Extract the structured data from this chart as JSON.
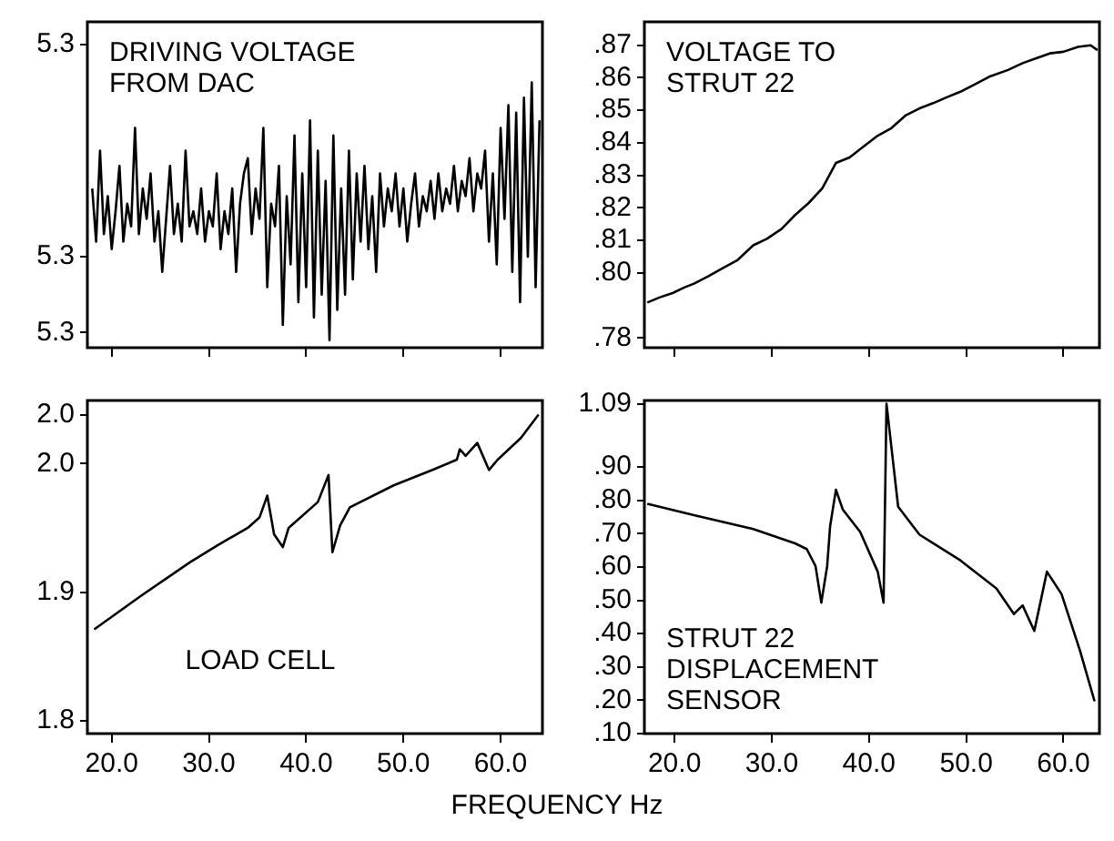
{
  "chart_data": [
    {
      "type": "line",
      "title": "DRIVING VOLTAGE FROM DAC",
      "xlim": [
        17.5,
        64.3
      ],
      "xticks": [
        20,
        30,
        40,
        50,
        60
      ],
      "ylim": [
        5.2998,
        5.3041
      ],
      "yticks": [
        {
          "value": 5.3038,
          "label": "5.3"
        },
        {
          "value": 5.301,
          "label": "5.3"
        },
        {
          "value": 5.3,
          "label": "5.3"
        }
      ],
      "tick_labels": "y",
      "grid": false,
      "series": [
        {
          "color": "#000000",
          "x": [
            18.0,
            18.4,
            18.8,
            19.2,
            19.6,
            20.0,
            20.4,
            20.8,
            21.2,
            21.6,
            22.0,
            22.4,
            22.8,
            23.2,
            23.6,
            24.0,
            24.4,
            24.8,
            25.2,
            25.6,
            26.0,
            26.4,
            26.8,
            27.2,
            27.6,
            28.0,
            28.4,
            28.8,
            29.2,
            29.6,
            30.0,
            30.4,
            30.8,
            31.2,
            31.6,
            32.0,
            32.4,
            32.8,
            33.2,
            33.6,
            34.0,
            34.4,
            34.8,
            35.2,
            35.6,
            36.0,
            36.4,
            36.8,
            37.2,
            37.6,
            38.0,
            38.4,
            38.8,
            39.2,
            39.6,
            40.0,
            40.4,
            40.8,
            41.2,
            41.6,
            42.0,
            42.4,
            42.8,
            43.2,
            43.6,
            44.0,
            44.4,
            44.8,
            45.2,
            45.6,
            46.0,
            46.4,
            46.8,
            47.2,
            47.6,
            48.0,
            48.4,
            48.8,
            49.2,
            49.6,
            50.0,
            50.4,
            50.8,
            51.2,
            51.6,
            52.0,
            52.4,
            52.8,
            53.2,
            53.6,
            54.0,
            54.4,
            54.8,
            55.2,
            55.6,
            56.0,
            56.4,
            56.8,
            57.2,
            57.6,
            58.0,
            58.4,
            58.8,
            59.2,
            59.6,
            60.0,
            60.4,
            60.8,
            61.2,
            61.6,
            62.0,
            62.4,
            62.8,
            63.2,
            63.6,
            64.0
          ],
          "values": [
            5.3019,
            5.3012,
            5.3024,
            5.3013,
            5.3018,
            5.3011,
            5.3016,
            5.3022,
            5.3012,
            5.3017,
            5.3014,
            5.3027,
            5.3013,
            5.3019,
            5.3015,
            5.3021,
            5.3012,
            5.3016,
            5.3008,
            5.3015,
            5.3022,
            5.3013,
            5.3017,
            5.3012,
            5.3024,
            5.3014,
            5.3016,
            5.3013,
            5.3019,
            5.3012,
            5.3016,
            5.3014,
            5.3021,
            5.3011,
            5.3016,
            5.3013,
            5.3019,
            5.3008,
            5.3017,
            5.3021,
            5.3023,
            5.3013,
            5.3019,
            5.3015,
            5.3027,
            5.3006,
            5.3017,
            5.3014,
            5.3022,
            5.3001,
            5.3018,
            5.3009,
            5.3026,
            5.3004,
            5.3021,
            5.3006,
            5.3028,
            5.3002,
            5.3024,
            5.3005,
            5.302,
            5.2999,
            5.3026,
            5.3003,
            5.3019,
            5.3005,
            5.3024,
            5.3007,
            5.3021,
            5.3012,
            5.3022,
            5.3011,
            5.3018,
            5.3008,
            5.3021,
            5.3014,
            5.3019,
            5.3016,
            5.3021,
            5.3014,
            5.3019,
            5.3012,
            5.3017,
            5.3021,
            5.3014,
            5.3018,
            5.3016,
            5.302,
            5.3015,
            5.3021,
            5.3016,
            5.3019,
            5.3017,
            5.3022,
            5.3016,
            5.302,
            5.3018,
            5.3023,
            5.3016,
            5.3021,
            5.3019,
            5.3024,
            5.3012,
            5.3021,
            5.3009,
            5.3027,
            5.3015,
            5.303,
            5.3008,
            5.3029,
            5.3004,
            5.3031,
            5.301,
            5.3033,
            5.3006,
            5.3028
          ]
        }
      ]
    },
    {
      "type": "line",
      "title": "VOLTAGE TO STRUT 22",
      "xlim": [
        16.9,
        63.7
      ],
      "xticks": [
        20,
        30,
        40,
        50,
        60
      ],
      "ylim": [
        0.777,
        0.8772
      ],
      "yticks": [
        {
          "value": 0.87,
          "label": ".87"
        },
        {
          "value": 0.86,
          "label": ".86"
        },
        {
          "value": 0.85,
          "label": ".85"
        },
        {
          "value": 0.84,
          "label": ".84"
        },
        {
          "value": 0.83,
          "label": ".83"
        },
        {
          "value": 0.82,
          "label": ".82"
        },
        {
          "value": 0.81,
          "label": ".81"
        },
        {
          "value": 0.8,
          "label": ".80"
        },
        {
          "value": 0.78,
          "label": ".78"
        }
      ],
      "tick_labels": "y",
      "grid": false,
      "series": [
        {
          "color": "#000000",
          "x": [
            17.2,
            18.5,
            19.8,
            21.0,
            22.0,
            23.5,
            25.0,
            26.5,
            28.1,
            29.5,
            31.0,
            32.4,
            33.8,
            35.2,
            36.6,
            38.0,
            39.5,
            40.9,
            42.3,
            43.8,
            45.2,
            46.6,
            48.0,
            49.4,
            50.9,
            52.5,
            54.3,
            55.8,
            57.2,
            58.6,
            60.0,
            61.5,
            62.8,
            63.5
          ],
          "values": [
            0.7909,
            0.7925,
            0.7938,
            0.7955,
            0.7967,
            0.799,
            0.8015,
            0.804,
            0.8085,
            0.8105,
            0.8135,
            0.8178,
            0.8215,
            0.826,
            0.8338,
            0.8355,
            0.839,
            0.8422,
            0.8445,
            0.8485,
            0.8506,
            0.8522,
            0.854,
            0.8557,
            0.858,
            0.8605,
            0.8624,
            0.8645,
            0.866,
            0.8675,
            0.868,
            0.8695,
            0.87,
            0.8685
          ]
        }
      ]
    },
    {
      "type": "line",
      "title": "LOAD CELL",
      "xlabel": "FREQUENCY Hz",
      "xlim": [
        17.5,
        64.3
      ],
      "xticks": [
        {
          "value": 20,
          "label": "20.0"
        },
        {
          "value": 30,
          "label": "30.0"
        },
        {
          "value": 40,
          "label": "40.0"
        },
        {
          "value": 50,
          "label": "50.0"
        },
        {
          "value": 60,
          "label": "60.0"
        }
      ],
      "ylim": [
        1.79,
        2.049
      ],
      "yticks": [
        {
          "value": 2.038,
          "label": "2.0"
        },
        {
          "value": 2.0,
          "label": "2.0"
        },
        {
          "value": 1.9,
          "label": "1.9"
        },
        {
          "value": 1.8,
          "label": "1.8"
        }
      ],
      "grid": false,
      "series": [
        {
          "color": "#000000",
          "x": [
            18.2,
            23.0,
            28.0,
            31.0,
            34.0,
            35.2,
            36.0,
            36.7,
            37.6,
            38.2,
            41.2,
            42.3,
            42.7,
            43.5,
            44.5,
            49.0,
            53.0,
            55.5,
            55.8,
            56.4,
            57.6,
            58.8,
            59.7,
            62.1,
            63.9
          ],
          "values": [
            1.871,
            1.897,
            1.923,
            1.937,
            1.95,
            1.958,
            1.975,
            1.945,
            1.935,
            1.95,
            1.97,
            1.991,
            1.931,
            1.952,
            1.966,
            1.983,
            1.995,
            2.003,
            2.011,
            2.006,
            2.016,
            1.995,
            2.003,
            2.02,
            2.038
          ]
        }
      ]
    },
    {
      "type": "line",
      "title": "STRUT 22 DISPLACEMENT SENSOR",
      "xlim": [
        16.9,
        63.7
      ],
      "xticks": [
        {
          "value": 20,
          "label": "20.0"
        },
        {
          "value": 30,
          "label": "30.0"
        },
        {
          "value": 40,
          "label": "40.0"
        },
        {
          "value": 50,
          "label": "50.0"
        },
        {
          "value": 60,
          "label": "60.0"
        }
      ],
      "ylim": [
        0.1,
        1.1
      ],
      "yticks": [
        {
          "value": 1.09,
          "label": "1.09"
        },
        {
          "value": 0.9,
          "label": ".90"
        },
        {
          "value": 0.8,
          "label": ".80"
        },
        {
          "value": 0.7,
          "label": ".70"
        },
        {
          "value": 0.6,
          "label": ".60"
        },
        {
          "value": 0.5,
          "label": ".50"
        },
        {
          "value": 0.4,
          "label": ".40"
        },
        {
          "value": 0.3,
          "label": ".30"
        },
        {
          "value": 0.2,
          "label": ".20"
        },
        {
          "value": 0.1,
          "label": ".10"
        }
      ],
      "grid": false,
      "series": [
        {
          "color": "#000000",
          "x": [
            17.2,
            22.0,
            28.1,
            32.4,
            33.6,
            34.5,
            35.1,
            35.7,
            36.0,
            36.6,
            37.3,
            39.1,
            40.9,
            41.5,
            41.8,
            43.0,
            45.2,
            49.4,
            53.1,
            54.9,
            55.8,
            57.0,
            58.3,
            59.8,
            61.7,
            63.2
          ],
          "values": [
            0.79,
            0.756,
            0.714,
            0.671,
            0.654,
            0.603,
            0.493,
            0.603,
            0.722,
            0.832,
            0.773,
            0.705,
            0.586,
            0.493,
            1.09,
            0.781,
            0.697,
            0.62,
            0.536,
            0.459,
            0.485,
            0.408,
            0.586,
            0.519,
            0.349,
            0.197
          ]
        }
      ]
    }
  ]
}
